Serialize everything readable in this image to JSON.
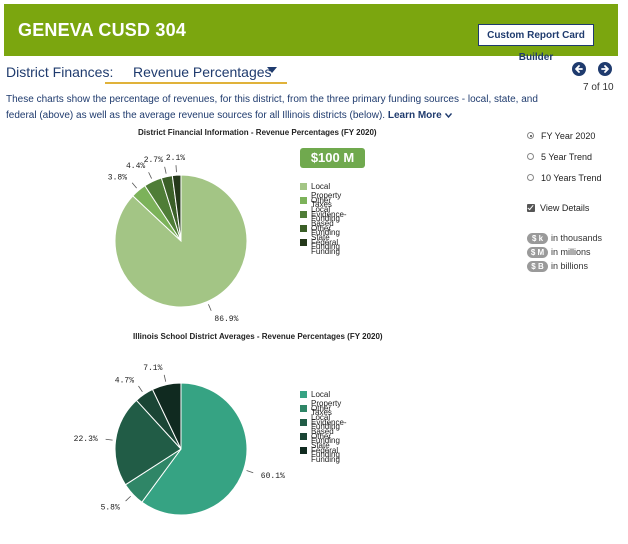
{
  "header": {
    "title": "GENEVA CUSD 304",
    "report_builder_label": "Custom Report Card Builder"
  },
  "section": {
    "label": "District Finances:",
    "selected": "Revenue Percentages",
    "pager": "7 of 10"
  },
  "description": {
    "text": "These charts show the percentage of revenues, for this district, from the three primary funding sources - local, state, and federal (above) as well as the average revenue sources for all Illinois districts (below).",
    "learn_more": "Learn More"
  },
  "total_badge": "$100 M",
  "options": {
    "radios": [
      {
        "label": "FY Year 2020",
        "checked": true
      },
      {
        "label": "5 Year Trend",
        "checked": false
      },
      {
        "label": "10 Years Trend",
        "checked": false
      }
    ],
    "view_details": "View Details",
    "units": [
      {
        "pill": "$ k",
        "label": "in thousands"
      },
      {
        "pill": "$ M",
        "label": "in millions"
      },
      {
        "pill": "$ B",
        "label": "in billions"
      }
    ]
  },
  "chart_data": [
    {
      "type": "pie",
      "title": "District Financial Information - Revenue Percentages (FY 2020)",
      "categories": [
        "Local Property Taxes",
        "Other Local Funding",
        "Evidence-Based Funding",
        "Other State Funding",
        "Federal Funding"
      ],
      "values": [
        86.9,
        3.8,
        4.4,
        2.7,
        2.1
      ],
      "labels": [
        "86.9%",
        "3.8%",
        "4.4%",
        "2.7%",
        "2.1%"
      ],
      "colors": [
        "#a3c585",
        "#7cb25a",
        "#4f7d37",
        "#3b5f28",
        "#24381a"
      ],
      "legend": "right"
    },
    {
      "type": "pie",
      "title": "Illinois School District Averages - Revenue Percentages (FY 2020)",
      "categories": [
        "Local Property Taxes",
        "Other Local Funding",
        "Evidence-Based Funding",
        "Other State Funding",
        "Federal Funding"
      ],
      "values": [
        60.1,
        5.8,
        22.3,
        4.7,
        7.1
      ],
      "labels": [
        "60.1%",
        "5.8%",
        "22.3%",
        "4.7%",
        "7.1%"
      ],
      "colors": [
        "#36a383",
        "#2f8667",
        "#215c46",
        "#1a4535",
        "#102a20"
      ],
      "legend": "right"
    }
  ]
}
